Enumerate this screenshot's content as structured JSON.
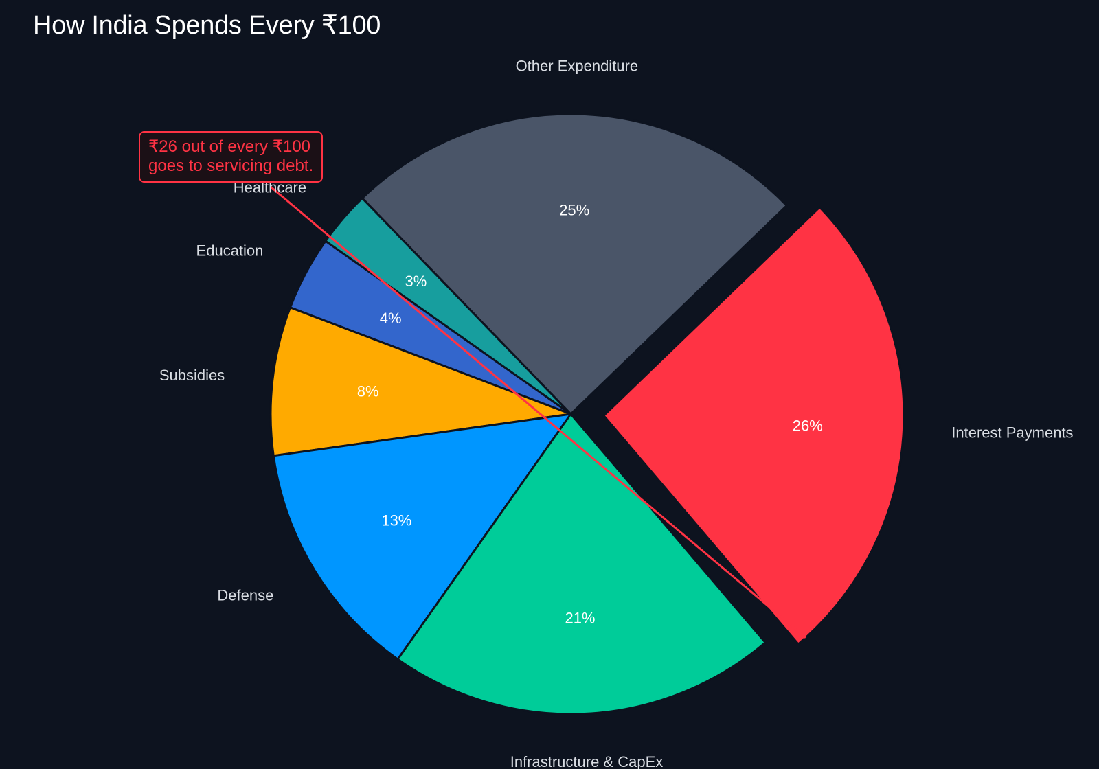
{
  "chart_data": {
    "type": "pie",
    "title": "How India Spends Every ₹100",
    "slices": [
      {
        "label": "Other Expenditure",
        "value": 25,
        "pct_label": "25%",
        "color": "#4a5568",
        "exploded": false
      },
      {
        "label": "Healthcare",
        "value": 3,
        "pct_label": "3%",
        "color": "#179e9e",
        "exploded": false
      },
      {
        "label": "Education",
        "value": 4,
        "pct_label": "4%",
        "color": "#3366cc",
        "exploded": false
      },
      {
        "label": "Subsidies",
        "value": 8,
        "pct_label": "8%",
        "color": "#ffaa00",
        "exploded": false
      },
      {
        "label": "Defense",
        "value": 13,
        "pct_label": "13%",
        "color": "#0096ff",
        "exploded": false
      },
      {
        "label": "Infrastructure & CapEx",
        "value": 21,
        "pct_label": "21%",
        "color": "#00cc99",
        "exploded": false
      },
      {
        "label": "Interest Payments",
        "value": 26,
        "pct_label": "26%",
        "color": "#ff3344",
        "exploded": true
      }
    ],
    "annotation": {
      "lines": [
        "₹26 out of every ₹100",
        "goes to servicing debt."
      ],
      "color": "#ff3344",
      "target": "Interest Payments"
    },
    "background": "#0d131f"
  }
}
